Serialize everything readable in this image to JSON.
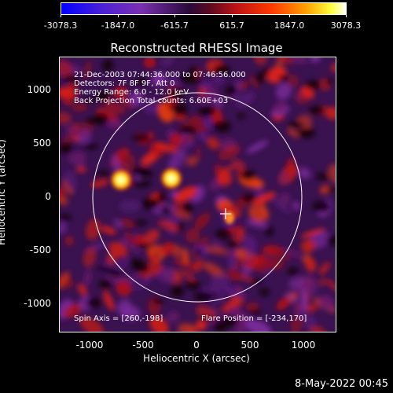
{
  "colorbar": {
    "ticks": [
      "-3078.3",
      "-1847.0",
      "-615.7",
      "615.7",
      "1847.0",
      "3078.3"
    ],
    "colors": [
      "#0000ff",
      "#6a28c8",
      "#2a0a3a",
      "#c81414",
      "#ffa000",
      "#ffffff"
    ]
  },
  "title": "Reconstructed RHESSI Image",
  "info": {
    "line1": "21-Dec-2003 07:44:36.000 to 07:46:56.000",
    "line2": "Detectors: 7F 8F 9F, Att 0",
    "line3": "Energy Range: 6.0 - 12.0 keV",
    "line4": "Back Projection    Total counts: 6.60E+03",
    "spin_axis": "Spin Axis = [260,-198]",
    "flare_position": "Flare Position = [-234,170]"
  },
  "axes": {
    "xlabel": "Heliocentric X (arcsec)",
    "ylabel": "Heliocentric Y (arcsec)",
    "xticks": [
      "-1000",
      "-500",
      "0",
      "500",
      "1000"
    ],
    "yticks": [
      "1000",
      "500",
      "0",
      "-500",
      "-1000"
    ]
  },
  "timestamp": "8-May-2022 00:45"
}
